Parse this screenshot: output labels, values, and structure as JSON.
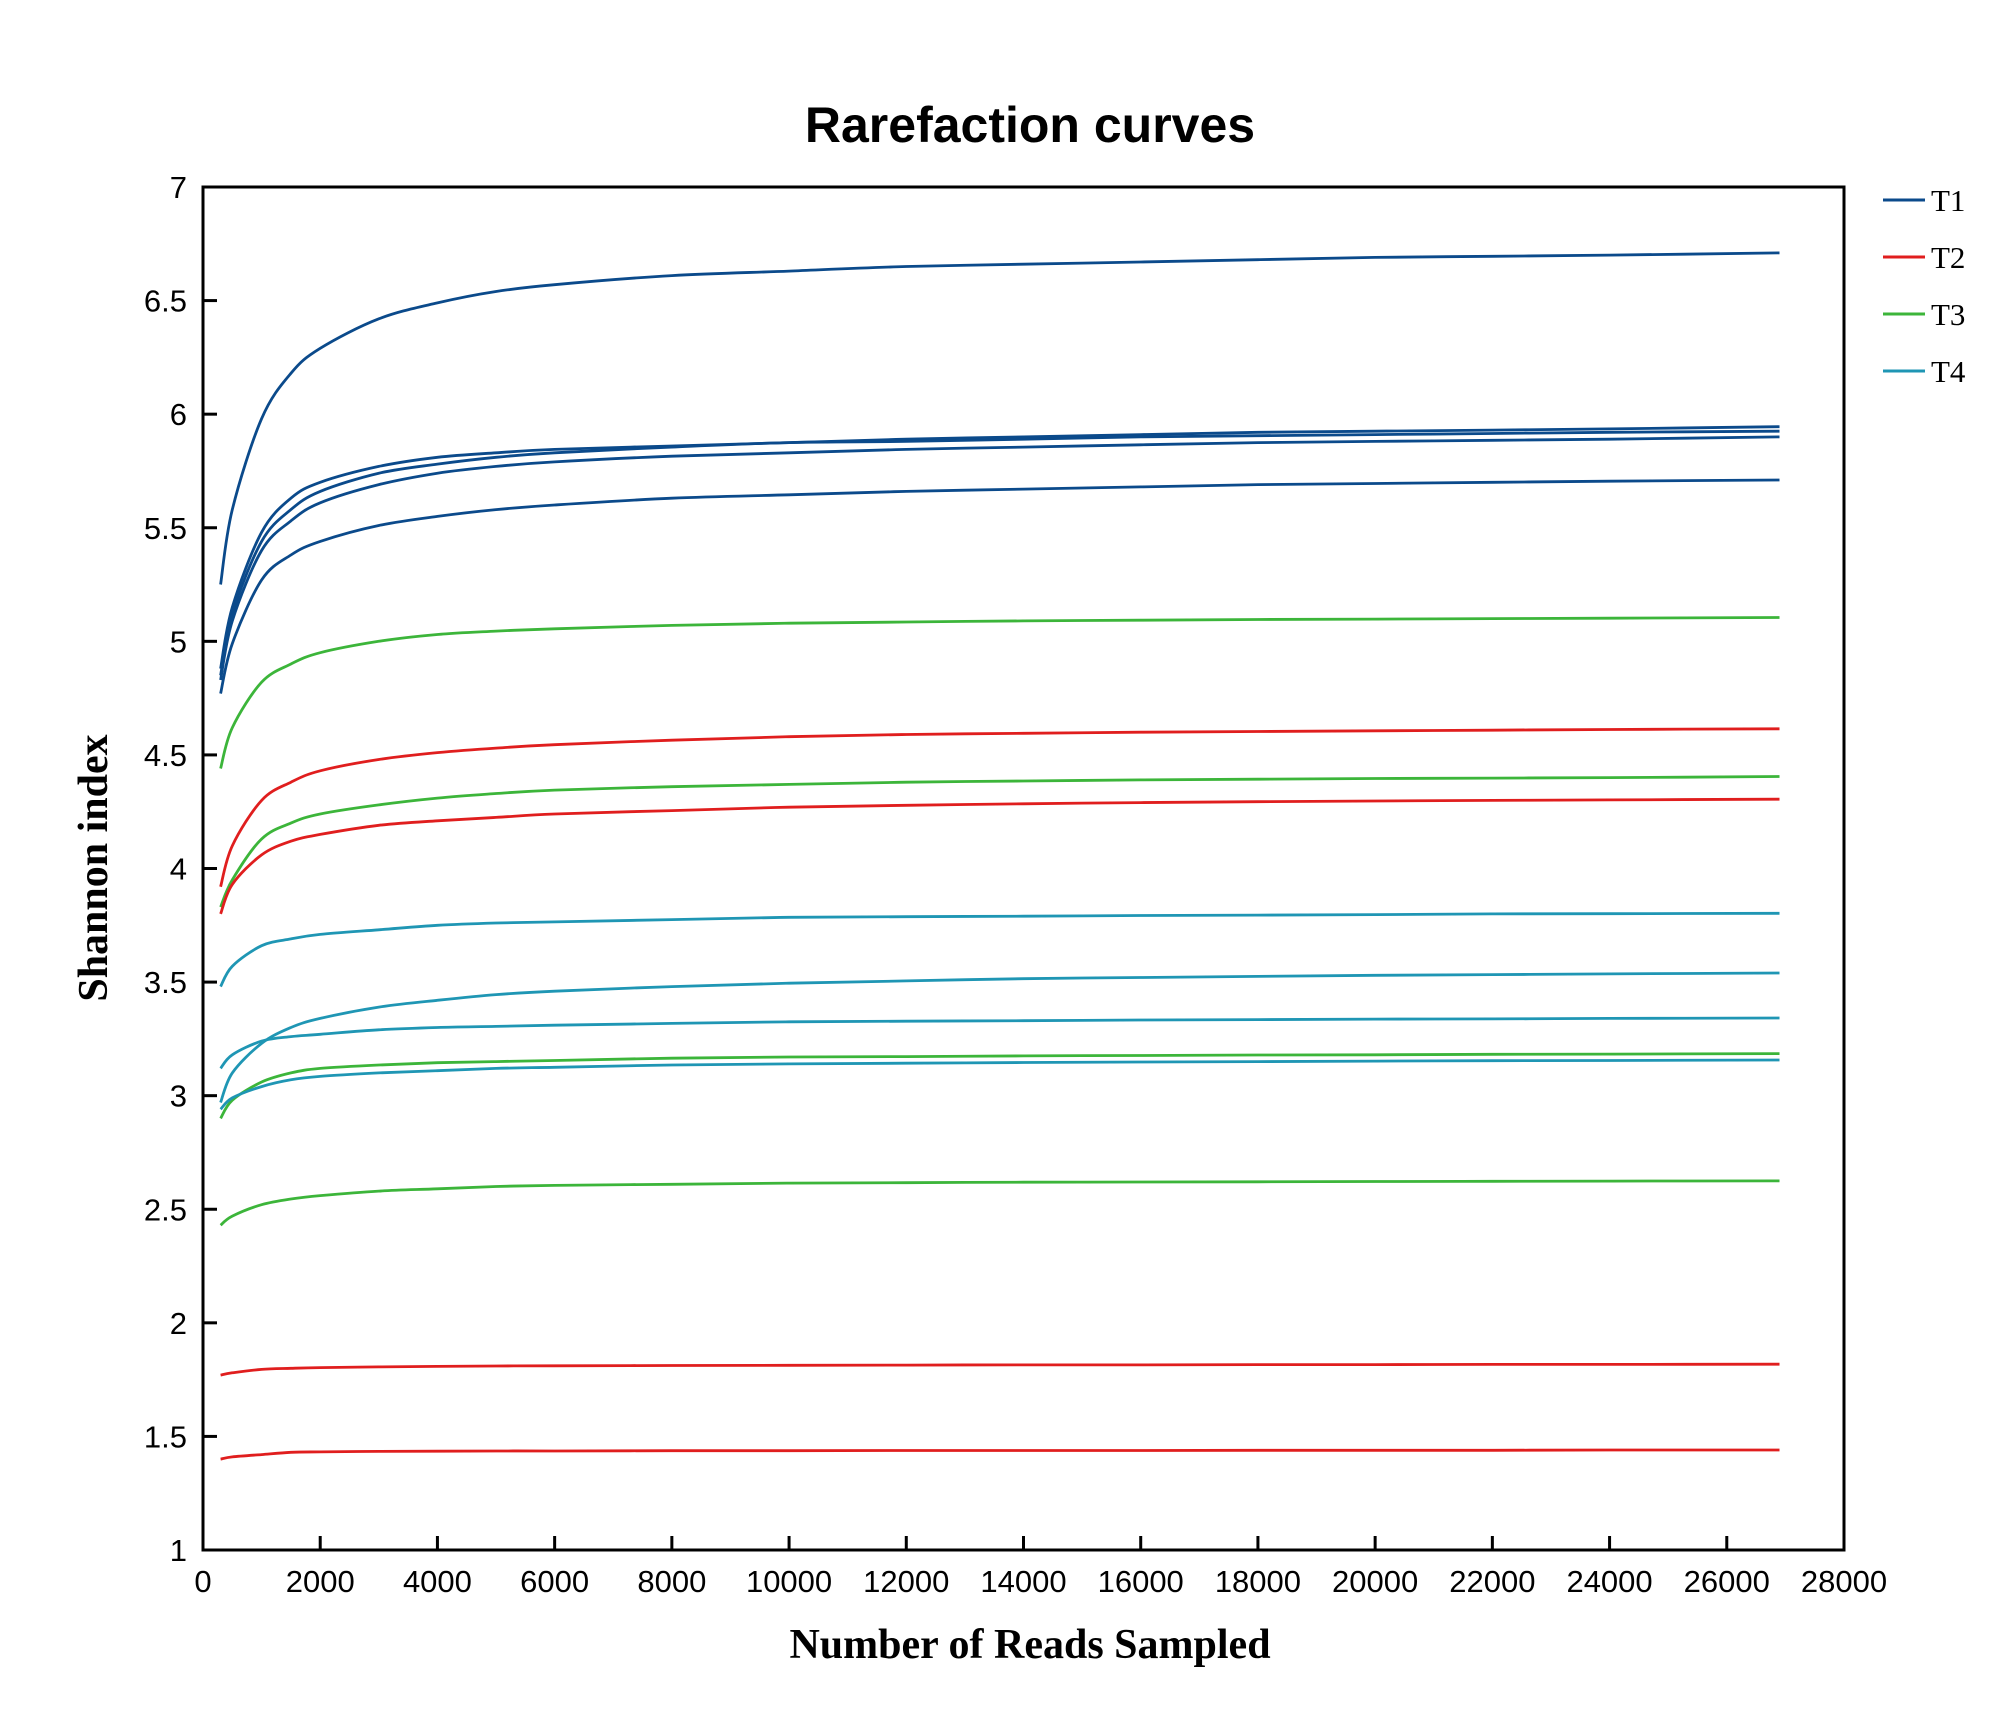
{
  "chart_data": {
    "type": "line",
    "title": "Rarefaction curves",
    "xlabel": "Number of Reads Sampled",
    "ylabel": "Shannon index",
    "xlim": [
      0,
      28000
    ],
    "ylim": [
      1,
      7
    ],
    "xticks": [
      "0",
      "2000",
      "4000",
      "6000",
      "8000",
      "10000",
      "12000",
      "14000",
      "16000",
      "18000",
      "20000",
      "22000",
      "24000",
      "26000",
      "28000"
    ],
    "yticks": [
      "1",
      "1.5",
      "2",
      "2.5",
      "3",
      "3.5",
      "4",
      "4.5",
      "5",
      "5.5",
      "6",
      "6.5",
      "7"
    ],
    "legend_position": "outside-top-right",
    "x": [
      300,
      500,
      1000,
      1500,
      2000,
      3000,
      4000,
      5000,
      6000,
      8000,
      10000,
      12000,
      14000,
      16000,
      18000,
      20000,
      22000,
      24000,
      26900
    ],
    "groups": [
      {
        "name": "T1",
        "color": "#0b4a8b"
      },
      {
        "name": "T2",
        "color": "#e01e1e"
      },
      {
        "name": "T3",
        "color": "#3cb53a"
      },
      {
        "name": "T4",
        "color": "#1f96b4"
      }
    ],
    "series": [
      {
        "group": "T1",
        "values": [
          5.25,
          5.58,
          5.98,
          6.18,
          6.29,
          6.42,
          6.49,
          6.54,
          6.57,
          6.61,
          6.63,
          6.65,
          6.66,
          6.67,
          6.68,
          6.69,
          6.695,
          6.7,
          6.71
        ]
      },
      {
        "group": "T1",
        "values": [
          4.88,
          5.15,
          5.48,
          5.63,
          5.7,
          5.77,
          5.81,
          5.83,
          5.845,
          5.86,
          5.875,
          5.89,
          5.9,
          5.91,
          5.92,
          5.925,
          5.93,
          5.935,
          5.945
        ]
      },
      {
        "group": "T1",
        "values": [
          4.85,
          5.12,
          5.44,
          5.58,
          5.66,
          5.74,
          5.78,
          5.81,
          5.83,
          5.855,
          5.875,
          5.88,
          5.89,
          5.9,
          5.905,
          5.91,
          5.915,
          5.92,
          5.925
        ]
      },
      {
        "group": "T1",
        "values": [
          4.83,
          5.09,
          5.4,
          5.53,
          5.61,
          5.69,
          5.74,
          5.77,
          5.79,
          5.815,
          5.83,
          5.845,
          5.855,
          5.865,
          5.875,
          5.88,
          5.885,
          5.89,
          5.9
        ]
      },
      {
        "group": "T1",
        "values": [
          4.77,
          4.99,
          5.27,
          5.38,
          5.44,
          5.51,
          5.55,
          5.58,
          5.6,
          5.63,
          5.645,
          5.66,
          5.67,
          5.68,
          5.69,
          5.695,
          5.7,
          5.705,
          5.71
        ]
      },
      {
        "group": "T3",
        "values": [
          4.44,
          4.62,
          4.82,
          4.9,
          4.95,
          5.0,
          5.03,
          5.045,
          5.055,
          5.07,
          5.08,
          5.085,
          5.09,
          5.093,
          5.096,
          5.098,
          5.1,
          5.102,
          5.105
        ]
      },
      {
        "group": "T2",
        "values": [
          3.92,
          4.1,
          4.3,
          4.38,
          4.43,
          4.48,
          4.51,
          4.53,
          4.545,
          4.565,
          4.58,
          4.59,
          4.595,
          4.6,
          4.603,
          4.606,
          4.609,
          4.612,
          4.615
        ]
      },
      {
        "group": "T3",
        "values": [
          3.83,
          3.95,
          4.13,
          4.2,
          4.24,
          4.28,
          4.31,
          4.33,
          4.345,
          4.36,
          4.37,
          4.38,
          4.385,
          4.39,
          4.393,
          4.396,
          4.398,
          4.4,
          4.405
        ]
      },
      {
        "group": "T2",
        "values": [
          3.8,
          3.93,
          4.06,
          4.12,
          4.15,
          4.19,
          4.21,
          4.225,
          4.24,
          4.255,
          4.27,
          4.278,
          4.285,
          4.29,
          4.294,
          4.297,
          4.3,
          4.302,
          4.305
        ]
      },
      {
        "group": "T4",
        "values": [
          3.48,
          3.57,
          3.66,
          3.69,
          3.71,
          3.73,
          3.75,
          3.76,
          3.765,
          3.775,
          3.785,
          3.788,
          3.79,
          3.793,
          3.795,
          3.797,
          3.8,
          3.801,
          3.803
        ]
      },
      {
        "group": "T4",
        "values": [
          2.97,
          3.1,
          3.23,
          3.3,
          3.34,
          3.39,
          3.42,
          3.445,
          3.46,
          3.48,
          3.495,
          3.505,
          3.515,
          3.52,
          3.525,
          3.53,
          3.533,
          3.536,
          3.54
        ]
      },
      {
        "group": "T4",
        "values": [
          3.12,
          3.18,
          3.24,
          3.26,
          3.27,
          3.29,
          3.3,
          3.305,
          3.31,
          3.318,
          3.325,
          3.328,
          3.33,
          3.333,
          3.335,
          3.337,
          3.338,
          3.34,
          3.342
        ]
      },
      {
        "group": "T3",
        "values": [
          2.9,
          2.98,
          3.06,
          3.1,
          3.12,
          3.135,
          3.145,
          3.15,
          3.155,
          3.165,
          3.17,
          3.172,
          3.175,
          3.177,
          3.179,
          3.18,
          3.182,
          3.183,
          3.185
        ]
      },
      {
        "group": "T4",
        "values": [
          2.94,
          2.99,
          3.04,
          3.07,
          3.085,
          3.1,
          3.11,
          3.12,
          3.125,
          3.135,
          3.14,
          3.143,
          3.146,
          3.148,
          3.15,
          3.152,
          3.154,
          3.155,
          3.157
        ]
      },
      {
        "group": "T3",
        "values": [
          2.43,
          2.47,
          2.52,
          2.545,
          2.56,
          2.58,
          2.59,
          2.6,
          2.605,
          2.61,
          2.615,
          2.617,
          2.619,
          2.62,
          2.621,
          2.622,
          2.623,
          2.624,
          2.625
        ]
      },
      {
        "group": "T2",
        "values": [
          1.77,
          1.78,
          1.795,
          1.8,
          1.803,
          1.806,
          1.808,
          1.81,
          1.811,
          1.812,
          1.813,
          1.814,
          1.815,
          1.815,
          1.816,
          1.816,
          1.817,
          1.817,
          1.818
        ]
      },
      {
        "group": "T2",
        "values": [
          1.4,
          1.41,
          1.42,
          1.43,
          1.432,
          1.434,
          1.435,
          1.436,
          1.436,
          1.437,
          1.437,
          1.438,
          1.438,
          1.438,
          1.439,
          1.439,
          1.439,
          1.44,
          1.44
        ]
      }
    ]
  }
}
